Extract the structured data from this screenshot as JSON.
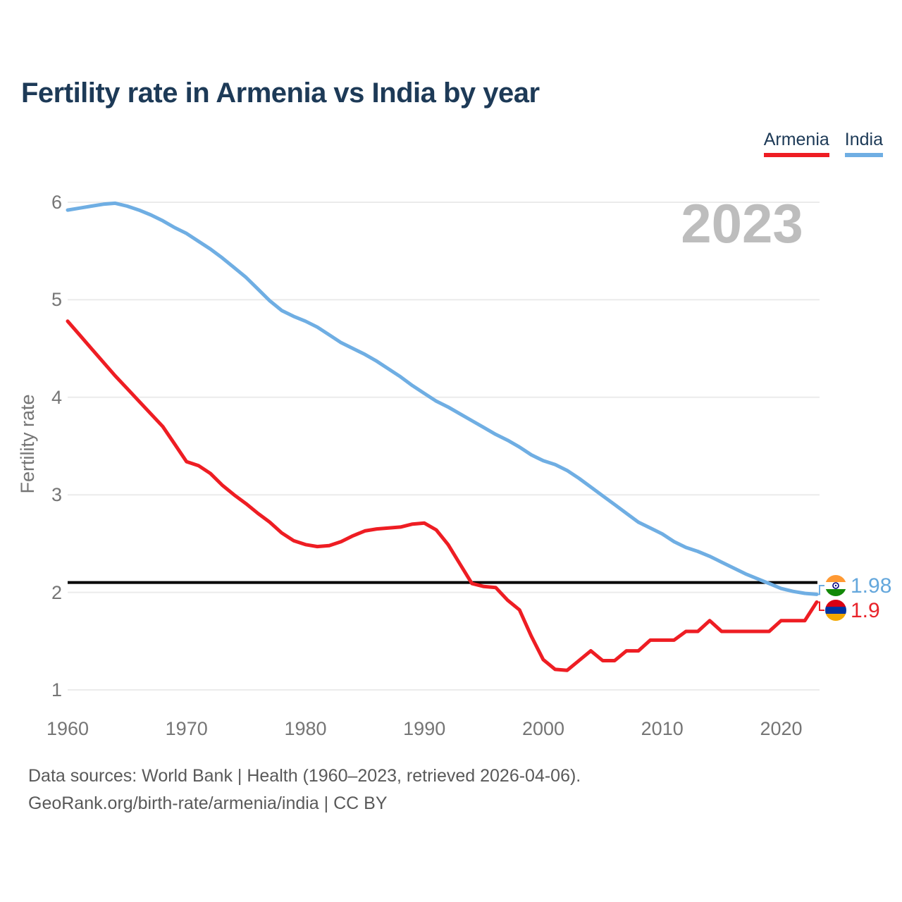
{
  "title": "Fertility rate in Armenia vs India by year",
  "legend": {
    "items": [
      {
        "label": "Armenia",
        "color": "#ee1d23"
      },
      {
        "label": "India",
        "color": "#6faee3"
      }
    ]
  },
  "watermark": "2023",
  "y_axis": {
    "label": "Fertility rate",
    "ticks": [
      "1",
      "2",
      "3",
      "4",
      "5",
      "6"
    ]
  },
  "x_axis": {
    "ticks": [
      "1960",
      "1970",
      "1980",
      "1990",
      "2000",
      "2010",
      "2020"
    ]
  },
  "reference_line": {
    "value": 2.1,
    "color": "#000000"
  },
  "end_labels": {
    "india": {
      "value": "1.98",
      "color": "#64a7dc",
      "flag": "india-flag-icon"
    },
    "armenia": {
      "value": "1.9",
      "color": "#e8232a",
      "flag": "armenia-flag-icon"
    }
  },
  "flag_colors": {
    "india": {
      "top": "#FF9933",
      "middle": "#FFFFFF",
      "bottom": "#138808",
      "chakra": "#000080"
    },
    "armenia": {
      "top": "#D90012",
      "middle": "#0033A0",
      "bottom": "#F2A800"
    }
  },
  "footer": {
    "line1": "Data sources: World Bank | Health (1960–2023, retrieved 2026-04-06).",
    "line2": "GeoRank.org/birth-rate/armenia/india | CC BY"
  },
  "chart_data": {
    "type": "line",
    "title": "Fertility rate in Armenia vs India by year",
    "xlabel": "",
    "ylabel": "Fertility rate",
    "ylim": [
      1,
      6
    ],
    "xlim": [
      1960,
      2023
    ],
    "grid": "horizontal",
    "legend_position": "top-right",
    "reference_line": 2.1,
    "x": [
      1960,
      1961,
      1962,
      1963,
      1964,
      1965,
      1966,
      1967,
      1968,
      1969,
      1970,
      1971,
      1972,
      1973,
      1974,
      1975,
      1976,
      1977,
      1978,
      1979,
      1980,
      1981,
      1982,
      1983,
      1984,
      1985,
      1986,
      1987,
      1988,
      1989,
      1990,
      1991,
      1992,
      1993,
      1994,
      1995,
      1996,
      1997,
      1998,
      1999,
      2000,
      2001,
      2002,
      2003,
      2004,
      2005,
      2006,
      2007,
      2008,
      2009,
      2010,
      2011,
      2012,
      2013,
      2014,
      2015,
      2016,
      2017,
      2018,
      2019,
      2020,
      2021,
      2022,
      2023
    ],
    "series": [
      {
        "name": "Armenia",
        "color": "#ee1d23",
        "final_value": 1.9,
        "values": [
          4.78,
          4.64,
          4.5,
          4.36,
          4.22,
          4.09,
          3.96,
          3.83,
          3.7,
          3.52,
          3.34,
          3.3,
          3.22,
          3.1,
          3.0,
          2.91,
          2.81,
          2.72,
          2.61,
          2.53,
          2.49,
          2.47,
          2.48,
          2.52,
          2.58,
          2.63,
          2.65,
          2.66,
          2.67,
          2.7,
          2.71,
          2.64,
          2.49,
          2.29,
          2.09,
          2.06,
          2.05,
          1.92,
          1.82,
          1.55,
          1.31,
          1.21,
          1.2,
          1.3,
          1.4,
          1.3,
          1.3,
          1.4,
          1.4,
          1.51,
          1.51,
          1.51,
          1.6,
          1.6,
          1.71,
          1.6,
          1.6,
          1.6,
          1.6,
          1.6,
          1.71,
          1.71,
          1.71,
          1.9
        ]
      },
      {
        "name": "India",
        "color": "#6faee3",
        "final_value": 1.98,
        "values": [
          5.92,
          5.94,
          5.96,
          5.98,
          5.99,
          5.96,
          5.92,
          5.87,
          5.81,
          5.74,
          5.68,
          5.6,
          5.52,
          5.43,
          5.33,
          5.23,
          5.11,
          4.99,
          4.89,
          4.83,
          4.78,
          4.72,
          4.64,
          4.56,
          4.5,
          4.44,
          4.37,
          4.29,
          4.21,
          4.12,
          4.04,
          3.96,
          3.9,
          3.83,
          3.76,
          3.69,
          3.62,
          3.56,
          3.49,
          3.41,
          3.35,
          3.31,
          3.25,
          3.17,
          3.08,
          2.99,
          2.9,
          2.81,
          2.72,
          2.66,
          2.6,
          2.52,
          2.46,
          2.42,
          2.37,
          2.31,
          2.25,
          2.19,
          2.14,
          2.09,
          2.04,
          2.01,
          1.99,
          1.98
        ]
      }
    ]
  }
}
